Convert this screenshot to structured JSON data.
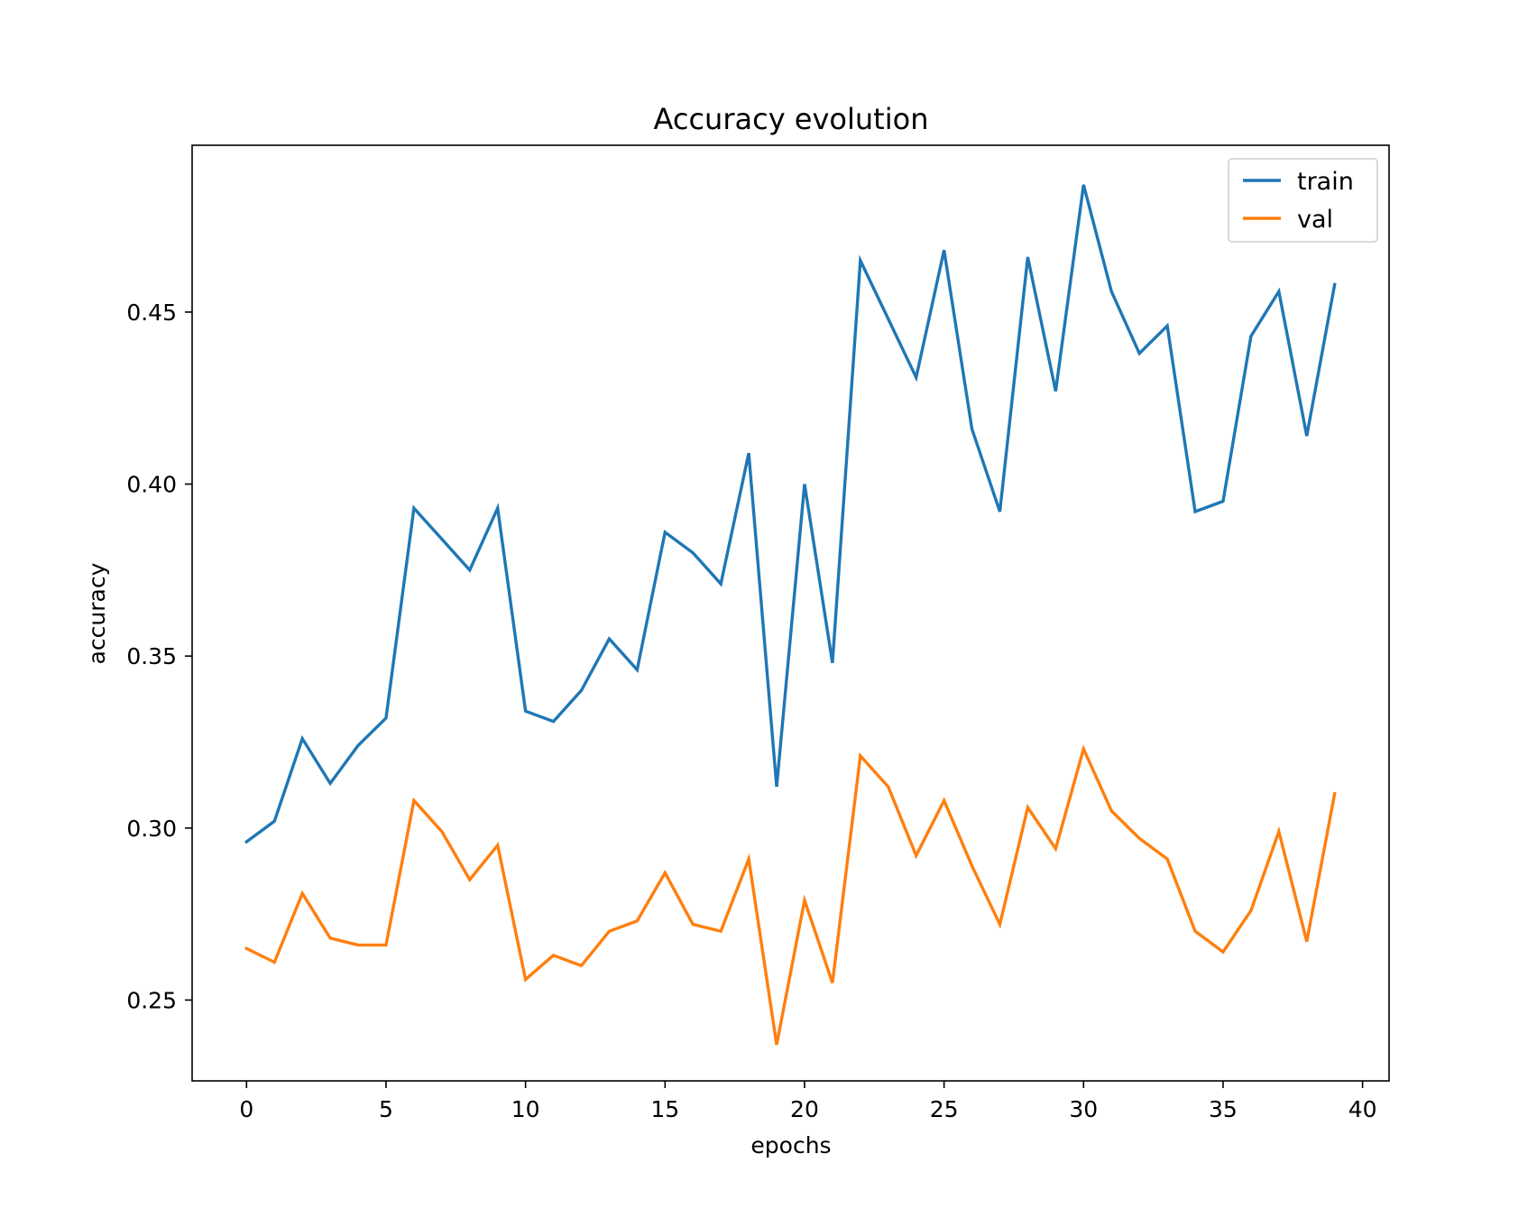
{
  "chart_data": {
    "type": "line",
    "title": "Accuracy evolution",
    "xlabel": "epochs",
    "ylabel": "accuracy",
    "xlim": [
      -1.95,
      40.95
    ],
    "ylim": [
      0.2265,
      0.4985
    ],
    "xticks": [
      0,
      5,
      10,
      15,
      20,
      25,
      30,
      35,
      40
    ],
    "yticks": [
      0.25,
      0.3,
      0.35,
      0.4,
      0.45
    ],
    "ytick_labels": [
      "0.25",
      "0.30",
      "0.35",
      "0.40",
      "0.45"
    ],
    "grid": false,
    "legend_position": "top-right",
    "x": [
      0,
      1,
      2,
      3,
      4,
      5,
      6,
      7,
      8,
      9,
      10,
      11,
      12,
      13,
      14,
      15,
      16,
      17,
      18,
      19,
      20,
      21,
      22,
      23,
      24,
      25,
      26,
      27,
      28,
      29,
      30,
      31,
      32,
      33,
      34,
      35,
      36,
      37,
      38,
      39
    ],
    "series": [
      {
        "name": "train",
        "color": "#1f77b4",
        "values": [
          0.296,
          0.302,
          0.326,
          0.313,
          0.324,
          0.332,
          0.393,
          0.384,
          0.375,
          0.393,
          0.334,
          0.331,
          0.34,
          0.355,
          0.346,
          0.386,
          0.38,
          0.371,
          0.409,
          0.312,
          0.4,
          0.348,
          0.465,
          0.448,
          0.431,
          0.468,
          0.416,
          0.392,
          0.466,
          0.427,
          0.487,
          0.456,
          0.438,
          0.446,
          0.392,
          0.395,
          0.443,
          0.456,
          0.414,
          0.458
        ]
      },
      {
        "name": "val",
        "color": "#ff7f0e",
        "values": [
          0.265,
          0.261,
          0.281,
          0.268,
          0.266,
          0.266,
          0.308,
          0.299,
          0.285,
          0.295,
          0.256,
          0.263,
          0.26,
          0.27,
          0.273,
          0.287,
          0.272,
          0.27,
          0.291,
          0.237,
          0.279,
          0.255,
          0.321,
          0.312,
          0.292,
          0.308,
          0.289,
          0.272,
          0.306,
          0.294,
          0.323,
          0.305,
          0.297,
          0.291,
          0.27,
          0.264,
          0.276,
          0.299,
          0.267,
          0.31
        ]
      }
    ]
  }
}
